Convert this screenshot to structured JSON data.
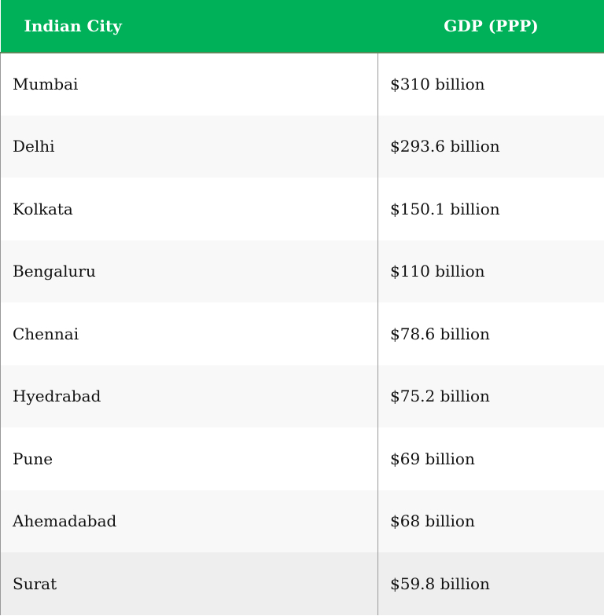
{
  "table": {
    "header": [
      "Indian City",
      "GDP (PPP)"
    ],
    "rows": [
      [
        "Mumbai",
        "$310 billion"
      ],
      [
        "Delhi",
        "$293.6 billion"
      ],
      [
        "Kolkata",
        "$150.1 billion"
      ],
      [
        "Bengaluru",
        "$110 billion"
      ],
      [
        "Chennai",
        "$78.6 billion"
      ],
      [
        "Hyedrabad",
        "$75.2 billion"
      ],
      [
        "Pune",
        "$69 billion"
      ],
      [
        "Ahemadabad",
        "$68 billion"
      ],
      [
        "Surat",
        "$59.8 billion"
      ]
    ]
  }
}
